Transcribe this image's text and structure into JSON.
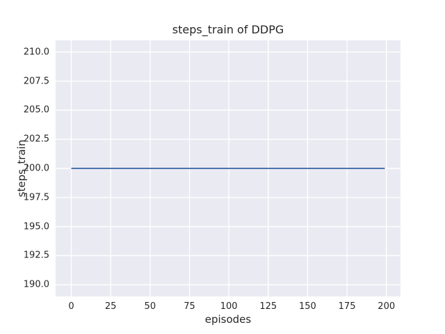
{
  "chart_data": {
    "type": "line",
    "title": "steps_train of DDPG",
    "xlabel": "episodes",
    "ylabel": "steps_train",
    "xlim": [
      -9.95,
      208.95
    ],
    "ylim": [
      189,
      211
    ],
    "xticks": [
      0,
      25,
      50,
      75,
      100,
      125,
      150,
      175,
      200
    ],
    "xtick_labels": [
      "0",
      "25",
      "50",
      "75",
      "100",
      "125",
      "150",
      "175",
      "200"
    ],
    "yticks": [
      190,
      192.5,
      195,
      197.5,
      200,
      202.5,
      205,
      207.5,
      210
    ],
    "ytick_labels": [
      "190.0",
      "192.5",
      "195.0",
      "197.5",
      "200.0",
      "202.5",
      "205.0",
      "207.5",
      "210.0"
    ],
    "grid": true,
    "legend": "none",
    "series": [
      {
        "name": "steps_train",
        "color": "#4c72b0",
        "x": [
          0,
          199
        ],
        "y": [
          200,
          200
        ],
        "note": "constant value 200 across all episodes 0-199"
      }
    ],
    "colors": {
      "figure_background": "#ffffff",
      "axes_background": "#eaeaf2",
      "grid_color": "#ffffff",
      "text_color": "#262626",
      "line_color": "#4c72b0"
    }
  }
}
